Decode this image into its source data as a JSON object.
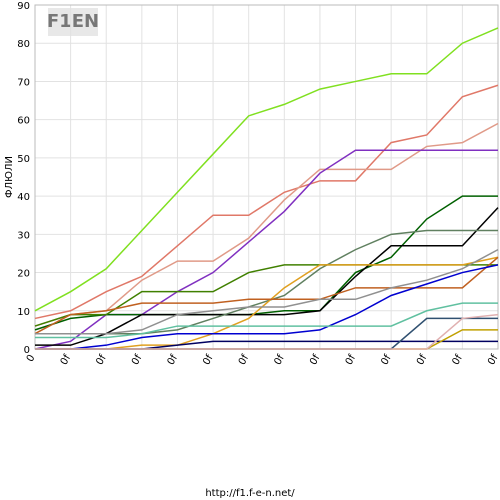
{
  "chart_data": {
    "type": "line",
    "logo": "F1EN",
    "ylabel": "ФЛЮЛИ",
    "footer": "http://f1.f-e-n.net/",
    "categories": [
      "0",
      "0f",
      "0f",
      "0f",
      "0f",
      "0f",
      "0f",
      "0f",
      "0f",
      "0f",
      "0f",
      "0f",
      "0f",
      "0f"
    ],
    "ylim": [
      0,
      90
    ],
    "yticks": [
      0,
      10,
      20,
      30,
      40,
      50,
      60,
      70,
      80,
      90
    ],
    "grid": true,
    "series": [
      {
        "color": "#80e020",
        "values": [
          10,
          15,
          21,
          31,
          41,
          51,
          61,
          64,
          68,
          70,
          72,
          72,
          80,
          84
        ]
      },
      {
        "color": "#e07868",
        "values": [
          8,
          10,
          15,
          19,
          27,
          35,
          35,
          41,
          44,
          44,
          54,
          56,
          66,
          69
        ]
      },
      {
        "color": "#e09a88",
        "values": [
          6,
          9,
          10,
          18,
          23,
          23,
          29,
          39,
          47,
          47,
          47,
          53,
          54,
          59
        ]
      },
      {
        "color": "#8030c0",
        "values": [
          0,
          2,
          9,
          9,
          15,
          20,
          28,
          36,
          46,
          52,
          52,
          52,
          52,
          52
        ]
      },
      {
        "color": "#006000",
        "values": [
          5,
          8,
          9,
          9,
          9,
          9,
          9,
          10,
          10,
          20,
          24,
          34,
          40,
          40
        ]
      },
      {
        "color": "#000000",
        "values": [
          1,
          1,
          4,
          9,
          9,
          9,
          9,
          9,
          10,
          19,
          27,
          27,
          27,
          37
        ]
      },
      {
        "color": "#608060",
        "values": [
          4,
          4,
          4,
          4,
          5,
          8,
          11,
          14,
          21,
          26,
          30,
          31,
          31,
          31
        ]
      },
      {
        "color": "#408000",
        "values": [
          6,
          9,
          9,
          15,
          15,
          15,
          20,
          22,
          22,
          22,
          22,
          22,
          22,
          22
        ]
      },
      {
        "color": "#e0a020",
        "values": [
          0,
          0,
          0,
          1,
          1,
          4,
          8,
          16,
          22,
          22,
          22,
          22,
          22,
          24
        ]
      },
      {
        "color": "#c06020",
        "values": [
          4,
          9,
          10,
          12,
          12,
          12,
          13,
          13,
          13,
          16,
          16,
          16,
          16,
          24
        ]
      },
      {
        "color": "#909090",
        "values": [
          4,
          4,
          4,
          5,
          9,
          10,
          11,
          11,
          13,
          13,
          16,
          18,
          21,
          26
        ]
      },
      {
        "color": "#0000d0",
        "values": [
          0,
          0,
          1,
          3,
          4,
          4,
          4,
          4,
          5,
          9,
          14,
          17,
          20,
          22
        ]
      },
      {
        "color": "#60c0a0",
        "values": [
          3,
          3,
          3,
          4,
          6,
          6,
          6,
          6,
          6,
          6,
          6,
          10,
          12,
          12
        ]
      },
      {
        "color": "#000060",
        "values": [
          0,
          0,
          0,
          0,
          1,
          2,
          2,
          2,
          2,
          2,
          2,
          2,
          2,
          2
        ]
      },
      {
        "color": "#c0a000",
        "values": [
          0,
          0,
          0,
          0,
          0,
          0,
          0,
          0,
          0,
          0,
          0,
          0,
          5,
          5
        ]
      },
      {
        "color": "#305070",
        "values": [
          0,
          0,
          0,
          0,
          0,
          0,
          0,
          0,
          0,
          0,
          0,
          8,
          8,
          8
        ]
      },
      {
        "color": "#e0b0b0",
        "values": [
          0,
          0,
          0,
          0,
          0,
          0,
          0,
          0,
          0,
          0,
          0,
          0,
          8,
          9
        ]
      }
    ]
  }
}
